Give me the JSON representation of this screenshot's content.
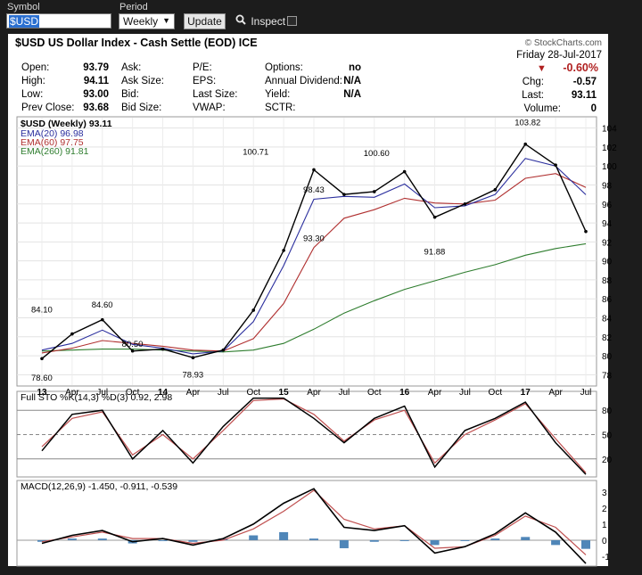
{
  "toolbar": {
    "symbol_label": "Symbol",
    "symbol_value": "$USD",
    "period_label": "Period",
    "period_value": "Weekly",
    "update_label": "Update",
    "inspect_label": "Inspect"
  },
  "header": {
    "title": "$USD US Dollar Index - Cash Settle (EOD) ICE",
    "copyright": "© StockCharts.com",
    "date": "Friday  28-Jul-2017",
    "change_pct": "-0.60%",
    "chg_label": "Chg:",
    "chg_value": "-0.57",
    "last_label": "Last:",
    "last_value": "93.11",
    "volume_label": "Volume:",
    "volume_value": "0"
  },
  "stats": {
    "open_label": "Open:",
    "open_value": "93.79",
    "high_label": "High:",
    "high_value": "94.11",
    "low_label": "Low:",
    "low_value": "93.00",
    "prevclose_label": "Prev Close:",
    "prevclose_value": "93.68",
    "ask_label": "Ask:",
    "asksize_label": "Ask Size:",
    "bid_label": "Bid:",
    "bidsize_label": "Bid Size:",
    "pe_label": "P/E:",
    "eps_label": "EPS:",
    "lastsize_label": "Last Size:",
    "vwap_label": "VWAP:",
    "options_label": "Options:",
    "options_value": "no",
    "dividend_label": "Annual Dividend:",
    "dividend_value": "N/A",
    "yield_label": "Yield:",
    "yield_value": "N/A",
    "sctr_label": "SCTR:"
  },
  "colors": {
    "price": "#000000",
    "ema20": "#2b2f9e",
    "ema60": "#b03030",
    "ema260": "#2e7d2e",
    "sto_k": "#000000",
    "sto_d": "#c05050",
    "macd": "#000000",
    "signal": "#c05050",
    "hist": "#4f86b8"
  },
  "chart_data": [
    {
      "type": "line",
      "title": "$USD (Weekly) 93.11",
      "x": [
        "Jan 2013",
        "Apr 2013",
        "Jul 2013",
        "Oct 2013",
        "Jan 2014",
        "Apr 2014",
        "Jul 2014",
        "Oct 2014",
        "Jan 2015",
        "Apr 2015",
        "Jul 2015",
        "Oct 2015",
        "Jan 2016",
        "Apr 2016",
        "Jul 2016",
        "Oct 2016",
        "Jan 2017",
        "Apr 2017",
        "Jul 2017"
      ],
      "x_tick_labels": [
        "13",
        "Apr",
        "Jul",
        "Oct",
        "14",
        "Apr",
        "Jul",
        "Oct",
        "15",
        "Apr",
        "Jul",
        "Oct",
        "16",
        "Apr",
        "Jul",
        "Oct",
        "17",
        "Apr",
        "Jul"
      ],
      "series": [
        {
          "name": "$USD (Weekly) 93.11",
          "values": [
            79.7,
            82.3,
            83.8,
            80.5,
            80.7,
            79.8,
            80.6,
            84.8,
            91.1,
            99.6,
            97.0,
            97.3,
            99.4,
            94.6,
            96.0,
            97.5,
            102.3,
            100.1,
            93.1
          ]
        },
        {
          "name": "EMA(20) 96.98",
          "values": [
            80.6,
            81.3,
            82.7,
            81.2,
            80.8,
            80.2,
            80.5,
            83.6,
            89.5,
            96.5,
            96.8,
            96.7,
            98.1,
            95.6,
            95.8,
            97.0,
            100.8,
            100.0,
            96.98
          ]
        },
        {
          "name": "EMA(60) 97.75",
          "values": [
            80.3,
            80.8,
            81.6,
            81.3,
            81.0,
            80.6,
            80.5,
            81.8,
            85.5,
            91.4,
            94.5,
            95.4,
            96.6,
            96.1,
            96.0,
            96.4,
            98.7,
            99.2,
            97.75
          ]
        },
        {
          "name": "EMA(260) 91.81",
          "values": [
            80.5,
            80.6,
            80.7,
            80.7,
            80.6,
            80.5,
            80.4,
            80.6,
            81.3,
            82.8,
            84.5,
            85.8,
            87.0,
            87.9,
            88.8,
            89.6,
            90.6,
            91.3,
            91.81
          ]
        }
      ],
      "annotations": [
        "84.10",
        "78.60",
        "84.60",
        "80.50",
        "78.93",
        "100.71",
        "93.30",
        "98.43",
        "100.60",
        "91.88",
        "103.82"
      ],
      "ylim": [
        77,
        105
      ],
      "y_ticks": [
        78,
        80,
        82,
        84,
        86,
        88,
        90,
        92,
        94,
        96,
        98,
        100,
        102,
        104
      ],
      "grid": true
    },
    {
      "type": "line",
      "title": "Full STO %K(14,3) %D(3) 0.92, 2.98",
      "x": [
        "Jan 2013",
        "Apr 2013",
        "Jul 2013",
        "Oct 2013",
        "Jan 2014",
        "Apr 2014",
        "Jul 2014",
        "Oct 2014",
        "Jan 2015",
        "Apr 2015",
        "Jul 2015",
        "Oct 2015",
        "Jan 2016",
        "Apr 2016",
        "Jul 2016",
        "Oct 2016",
        "Jan 2017",
        "Apr 2017",
        "Jul 2017"
      ],
      "series": [
        {
          "name": "%K",
          "values": [
            30,
            75,
            80,
            20,
            55,
            15,
            60,
            95,
            95,
            70,
            40,
            70,
            85,
            10,
            55,
            70,
            90,
            40,
            1
          ]
        },
        {
          "name": "%D",
          "values": [
            35,
            70,
            78,
            25,
            50,
            20,
            55,
            92,
            94,
            75,
            42,
            68,
            80,
            15,
            50,
            68,
            88,
            45,
            3
          ]
        }
      ],
      "ylim": [
        0,
        100
      ],
      "y_ticks": [
        20,
        50,
        80
      ]
    },
    {
      "type": "line",
      "title": "MACD(12,26,9) -1.450, -0.911, -0.539",
      "x": [
        "Jan 2013",
        "Apr 2013",
        "Jul 2013",
        "Oct 2013",
        "Jan 2014",
        "Apr 2014",
        "Jul 2014",
        "Oct 2014",
        "Jan 2015",
        "Apr 2015",
        "Jul 2015",
        "Oct 2015",
        "Jan 2016",
        "Apr 2016",
        "Jul 2016",
        "Oct 2016",
        "Jan 2017",
        "Apr 2017",
        "Jul 2017"
      ],
      "series": [
        {
          "name": "MACD",
          "values": [
            -0.2,
            0.3,
            0.6,
            -0.1,
            0.1,
            -0.3,
            0.1,
            1.0,
            2.3,
            3.2,
            0.8,
            0.6,
            0.9,
            -0.8,
            -0.4,
            0.4,
            1.7,
            0.5,
            -1.45
          ]
        },
        {
          "name": "Signal",
          "values": [
            -0.1,
            0.2,
            0.5,
            0.1,
            0.1,
            -0.2,
            0.0,
            0.7,
            1.8,
            3.1,
            1.3,
            0.7,
            0.9,
            -0.5,
            -0.4,
            0.3,
            1.5,
            0.8,
            -0.911
          ]
        },
        {
          "name": "Histogram",
          "values": [
            -0.1,
            0.1,
            0.1,
            -0.2,
            0.0,
            -0.1,
            0.1,
            0.3,
            0.5,
            0.1,
            -0.5,
            -0.1,
            0.0,
            -0.3,
            0.0,
            0.1,
            0.2,
            -0.3,
            -0.539
          ]
        }
      ],
      "ylim": [
        -1.5,
        3.6
      ],
      "y_ticks": [
        -1,
        0,
        1,
        2,
        3
      ]
    }
  ]
}
